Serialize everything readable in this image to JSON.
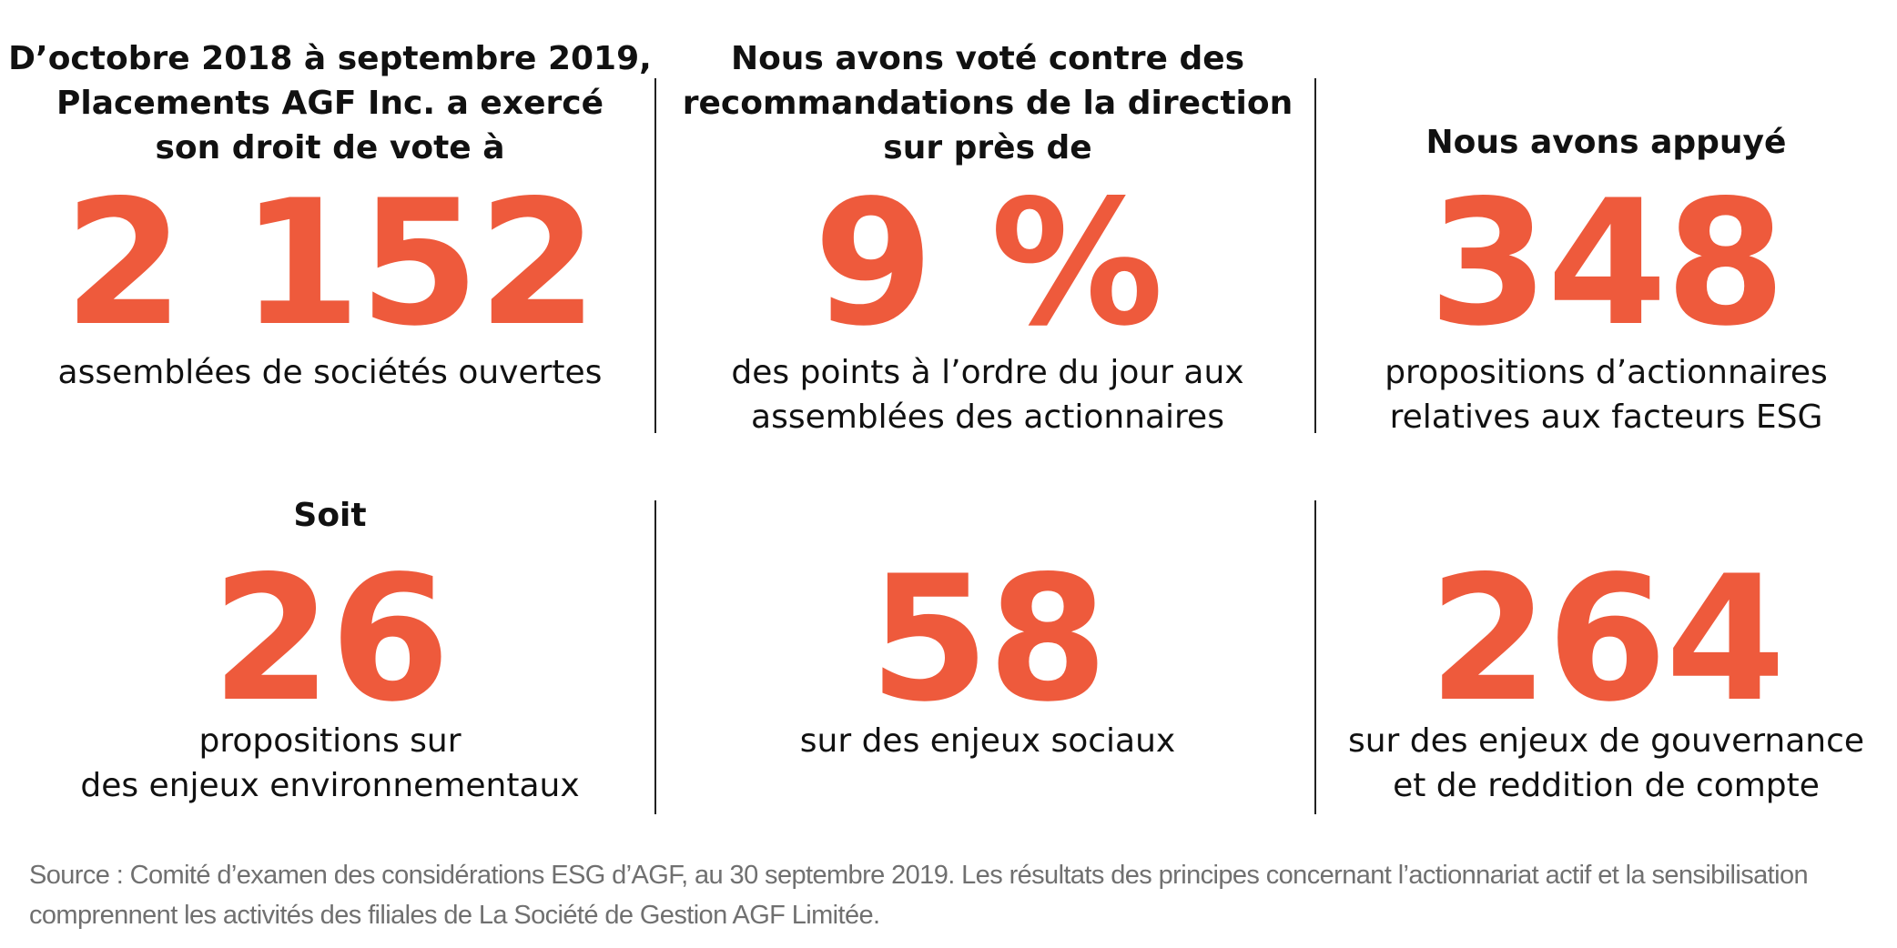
{
  "row1": [
    {
      "lead": "D’octobre 2018 à septembre 2019,\nPlacements AGF Inc. a exercé\nson droit de vote à",
      "number": "2 152",
      "desc": "assemblées de sociétés ouvertes"
    },
    {
      "lead": "Nous avons voté contre des\nrecommandations de la direction\nsur près de",
      "number": "9 %",
      "desc": "des points à l’ordre du jour aux\nassemblées des actionnaires"
    },
    {
      "lead": "Nous avons appuyé",
      "number": "348",
      "desc": "propositions d’actionnaires\nrelatives aux facteurs ESG"
    }
  ],
  "row2": [
    {
      "lead": "Soit",
      "number": "26",
      "desc": "propositions sur\ndes enjeux environnementaux"
    },
    {
      "lead": "",
      "number": "58",
      "desc": "sur des enjeux sociaux"
    },
    {
      "lead": "",
      "number": "264",
      "desc": "sur des enjeux de gouvernance\net de reddition de compte"
    }
  ],
  "source": "Source : Comité d’examen des considérations ESG d’AGF, au 30 septembre 2019. Les résultats des principes concernant l’actionnariat actif et la sensibilisation comprennent les activités des filiales de La Société de Gestion AGF Limitée.",
  "colors": {
    "accent": "#ee5a3c",
    "text": "#111111",
    "source_text": "#707070"
  }
}
